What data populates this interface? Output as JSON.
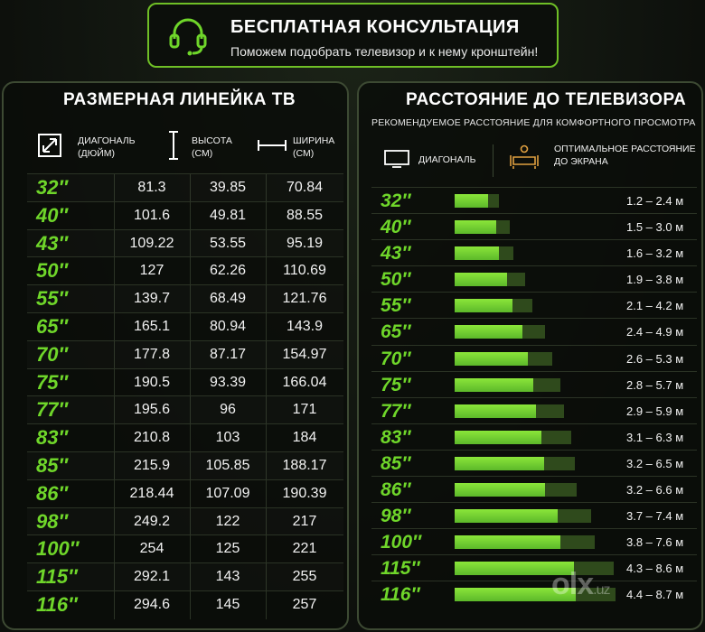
{
  "header": {
    "title": "БЕСПЛАТНАЯ КОНСУЛЬТАЦИЯ",
    "subtitle": "Поможем подобрать телевизор и к нему кронштейн!",
    "icon": "headset-icon"
  },
  "size_table": {
    "title": "РАЗМЕРНАЯ ЛИНЕЙКА ТВ",
    "columns": {
      "diagonal": "ДИАГОНАЛЬ\n(ДЮЙМ)",
      "height": "ВЫСОТА\n(СМ)",
      "width": "ШИРИНА\n(СМ)"
    },
    "rows": [
      {
        "size": "32″",
        "diag": "81.3",
        "height": "39.85",
        "width": "70.84"
      },
      {
        "size": "40″",
        "diag": "101.6",
        "height": "49.81",
        "width": "88.55"
      },
      {
        "size": "43″",
        "diag": "109.22",
        "height": "53.55",
        "width": "95.19"
      },
      {
        "size": "50″",
        "diag": "127",
        "height": "62.26",
        "width": "110.69"
      },
      {
        "size": "55″",
        "diag": "139.7",
        "height": "68.49",
        "width": "121.76"
      },
      {
        "size": "65″",
        "diag": "165.1",
        "height": "80.94",
        "width": "143.9"
      },
      {
        "size": "70″",
        "diag": "177.8",
        "height": "87.17",
        "width": "154.97"
      },
      {
        "size": "75″",
        "diag": "190.5",
        "height": "93.39",
        "width": "166.04"
      },
      {
        "size": "77″",
        "diag": "195.6",
        "height": "96",
        "width": "171"
      },
      {
        "size": "83″",
        "diag": "210.8",
        "height": "103",
        "width": "184"
      },
      {
        "size": "85″",
        "diag": "215.9",
        "height": "105.85",
        "width": "188.17"
      },
      {
        "size": "86″",
        "diag": "218.44",
        "height": "107.09",
        "width": "190.39"
      },
      {
        "size": "98″",
        "diag": "249.2",
        "height": "122",
        "width": "217"
      },
      {
        "size": "100″",
        "diag": "254",
        "height": "125",
        "width": "221"
      },
      {
        "size": "115″",
        "diag": "292.1",
        "height": "143",
        "width": "255"
      },
      {
        "size": "116″",
        "diag": "294.6",
        "height": "145",
        "width": "257"
      }
    ]
  },
  "distance_table": {
    "title": "РАССТОЯНИЕ ДО ТЕЛЕВИЗОРА",
    "subtitle": "РЕКОМЕНДУЕМОЕ РАССТОЯНИЕ ДЛЯ КОМФОРТНОГО ПРОСМОТРА",
    "col_diagonal": "ДИАГОНАЛЬ",
    "col_distance": "ОПТИМАЛЬНОЕ РАССТОЯНИЕ\nДО ЭКРАНА",
    "rows": [
      {
        "size": "32″",
        "range": "1.2 – 2.4 м",
        "min": 1.2,
        "max": 2.4
      },
      {
        "size": "40″",
        "range": "1.5 – 3.0 м",
        "min": 1.5,
        "max": 3.0
      },
      {
        "size": "43″",
        "range": "1.6 – 3.2 м",
        "min": 1.6,
        "max": 3.2
      },
      {
        "size": "50″",
        "range": "1.9 – 3.8 м",
        "min": 1.9,
        "max": 3.8
      },
      {
        "size": "55″",
        "range": "2.1 – 4.2 м",
        "min": 2.1,
        "max": 4.2
      },
      {
        "size": "65″",
        "range": "2.4 – 4.9 м",
        "min": 2.4,
        "max": 4.9
      },
      {
        "size": "70″",
        "range": "2.6 – 5.3 м",
        "min": 2.6,
        "max": 5.3
      },
      {
        "size": "75″",
        "range": "2.8 – 5.7 м",
        "min": 2.8,
        "max": 5.7
      },
      {
        "size": "77″",
        "range": "2.9 – 5.9 м",
        "min": 2.9,
        "max": 5.9
      },
      {
        "size": "83″",
        "range": "3.1 – 6.3 м",
        "min": 3.1,
        "max": 6.3
      },
      {
        "size": "85″",
        "range": "3.2 – 6.5 м",
        "min": 3.2,
        "max": 6.5
      },
      {
        "size": "86″",
        "range": "3.2 – 6.6 м",
        "min": 3.2,
        "max": 6.6
      },
      {
        "size": "98″",
        "range": "3.7 – 7.4 м",
        "min": 3.7,
        "max": 7.4
      },
      {
        "size": "100″",
        "range": "3.8 – 7.6 м",
        "min": 3.8,
        "max": 7.6
      },
      {
        "size": "115″",
        "range": "4.3 – 8.6 м",
        "min": 4.3,
        "max": 8.6
      },
      {
        "size": "116″",
        "range": "4.4 – 8.7 м",
        "min": 4.4,
        "max": 8.7
      }
    ]
  },
  "watermark": {
    "brand": "olx",
    "domain": ".uz"
  },
  "colors": {
    "accent": "#6fd62a",
    "border": "#6fbf26",
    "bar": "#7ad932",
    "bar_bg": "#2f4a1c"
  }
}
